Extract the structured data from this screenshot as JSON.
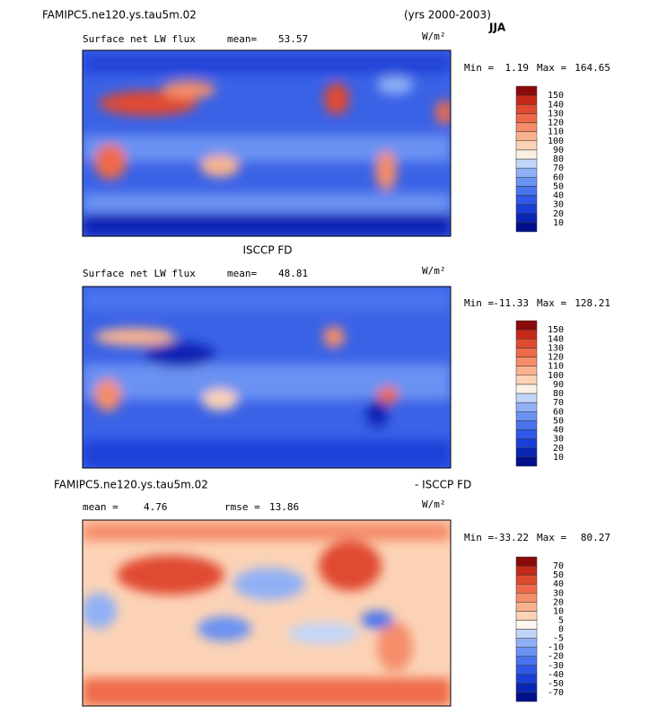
{
  "header": {
    "case": "FAMIPC5.ne120.ys.tau5m.02",
    "years": "(yrs 2000-2003)",
    "season": "JJA"
  },
  "panels": [
    {
      "variable": "Surface net LW flux",
      "stats": [
        {
          "label": "mean=",
          "value": 53.57
        }
      ],
      "units": "W/m²",
      "min_label": "Min =",
      "min": 1.19,
      "max_label": "Max =",
      "max": 164.65,
      "levels": [
        10,
        20,
        30,
        40,
        50,
        60,
        70,
        80,
        90,
        100,
        110,
        120,
        130,
        140,
        150
      ],
      "colors": [
        "#00108a",
        "#0a24b4",
        "#1a3fd8",
        "#2d58e8",
        "#4a74ee",
        "#6a92f2",
        "#90b0f6",
        "#c2d5f9",
        "#fbf0e4",
        "#fcd3b6",
        "#f9b28e",
        "#f58d6a",
        "#ee6a4a",
        "#e04a30",
        "#c42a1a",
        "#8b0a0a"
      ]
    },
    {
      "title": "ISCCP FD",
      "variable": "Surface net LW flux",
      "stats": [
        {
          "label": "mean=",
          "value": 48.81
        }
      ],
      "units": "W/m²",
      "min_label": "Min =",
      "min": -11.33,
      "max_label": "Max =",
      "max": 128.21,
      "levels": [
        10,
        20,
        30,
        40,
        50,
        60,
        70,
        80,
        90,
        100,
        110,
        120,
        130,
        140,
        150
      ],
      "colors": [
        "#00108a",
        "#0a24b4",
        "#1a3fd8",
        "#2d58e8",
        "#4a74ee",
        "#6a92f2",
        "#90b0f6",
        "#c2d5f9",
        "#fbf0e4",
        "#fcd3b6",
        "#f9b28e",
        "#f58d6a",
        "#ee6a4a",
        "#e04a30",
        "#c42a1a",
        "#8b0a0a"
      ]
    },
    {
      "title_left": "FAMIPC5.ne120.ys.tau5m.02",
      "title_right": "- ISCCP FD",
      "stats": [
        {
          "label": "mean =",
          "value": 4.76
        },
        {
          "label": "rmse =",
          "value": 13.86
        }
      ],
      "units": "W/m²",
      "min_label": "Min =",
      "min": -33.22,
      "max_label": "Max =",
      "max": 80.27,
      "levels": [
        -70,
        -50,
        -40,
        -30,
        -20,
        -10,
        -5,
        0,
        5,
        10,
        20,
        30,
        40,
        50,
        70
      ],
      "colors": [
        "#00108a",
        "#0a24b4",
        "#1a3fd8",
        "#2d58e8",
        "#4a74ee",
        "#6a92f2",
        "#90b0f6",
        "#c2d5f9",
        "#fdf6ee",
        "#fcd3b6",
        "#f9b28e",
        "#f58d6a",
        "#ee6a4a",
        "#e04a30",
        "#c42a1a",
        "#8b0a0a"
      ]
    }
  ]
}
